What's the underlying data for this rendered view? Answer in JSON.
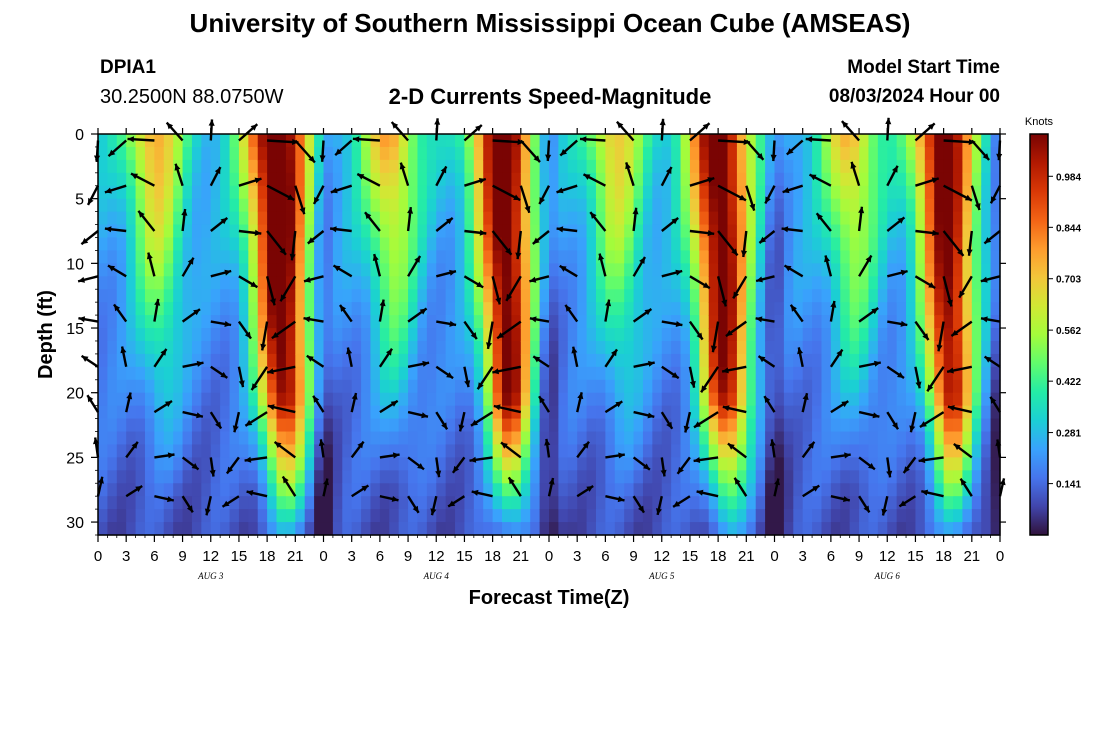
{
  "header": {
    "title": "University of Southern Mississippi Ocean Cube (AMSEAS)",
    "station_id": "DPIA1",
    "station_coords": "30.2500N  88.0750W",
    "chart_title": "2-D Currents Speed-Magnitude",
    "model_start_label": "Model Start Time",
    "model_start_value": "08/03/2024 Hour 00"
  },
  "footer": {
    "title": "University of Southern Mississippi Ocean Cube (AMSEAS)"
  },
  "chart_data": {
    "type": "heatmap",
    "xlabel": "Forecast Time(Z)",
    "ylabel": "Depth (ft)",
    "x_range_hours": [
      0,
      96
    ],
    "y_range_ft": [
      0,
      31
    ],
    "y_inverted": true,
    "x_tick_labels": [
      "0",
      "3",
      "6",
      "9",
      "12",
      "15",
      "18",
      "21",
      "0",
      "3",
      "6",
      "9",
      "12",
      "15",
      "18",
      "21",
      "0",
      "3",
      "6",
      "9",
      "12",
      "15",
      "18",
      "21",
      "0",
      "3",
      "6",
      "9",
      "12",
      "15",
      "18",
      "21",
      "0"
    ],
    "y_ticks": [
      0,
      5,
      10,
      15,
      20,
      25,
      30
    ],
    "day_labels": [
      {
        "label": "AUG 3",
        "hour": 12
      },
      {
        "label": "AUG 4",
        "hour": 36
      },
      {
        "label": "AUG 5",
        "hour": 60
      },
      {
        "label": "AUG 6",
        "hour": 84
      }
    ],
    "colorbar": {
      "unit": "Knots",
      "min": 0,
      "max": 1.1,
      "tick_values": [
        0.141,
        0.281,
        0.422,
        0.562,
        0.703,
        0.844,
        0.984
      ],
      "tick_labels": [
        "0.141",
        "0.281",
        "0.422",
        "0.562",
        "0.703",
        "0.844",
        "0.984"
      ],
      "colors": [
        "#30123b",
        "#4145ab",
        "#4675ed",
        "#39a2fc",
        "#1bcfd4",
        "#24eca6",
        "#61fc6c",
        "#a4fc3b",
        "#d1e834",
        "#f3c63a",
        "#fe9b2d",
        "#f36315",
        "#d93806",
        "#b11901",
        "#7a0403"
      ]
    },
    "speed_peaks": [
      {
        "hour": 19,
        "width_hours": 3.4,
        "amplitude": 0.95
      },
      {
        "hour": 43,
        "width_hours": 3.2,
        "amplitude": 0.92
      },
      {
        "hour": 66,
        "width_hours": 3.3,
        "amplitude": 0.9
      },
      {
        "hour": 90,
        "width_hours": 3.2,
        "amplitude": 0.88
      },
      {
        "hour": 6,
        "width_hours": 3.0,
        "amplitude": 0.5
      },
      {
        "hour": 31,
        "width_hours": 3.0,
        "amplitude": 0.5
      },
      {
        "hour": 55,
        "width_hours": 3.0,
        "amplitude": 0.44
      },
      {
        "hour": 80,
        "width_hours": 3.0,
        "amplitude": 0.46
      }
    ],
    "speed_minima_hours": [
      24,
      48,
      72,
      96
    ],
    "arrow_grid": {
      "hour_step": 3,
      "depths_ft": [
        0.5,
        4,
        7.5,
        11,
        14.5,
        18,
        21.5,
        25,
        28
      ]
    }
  }
}
